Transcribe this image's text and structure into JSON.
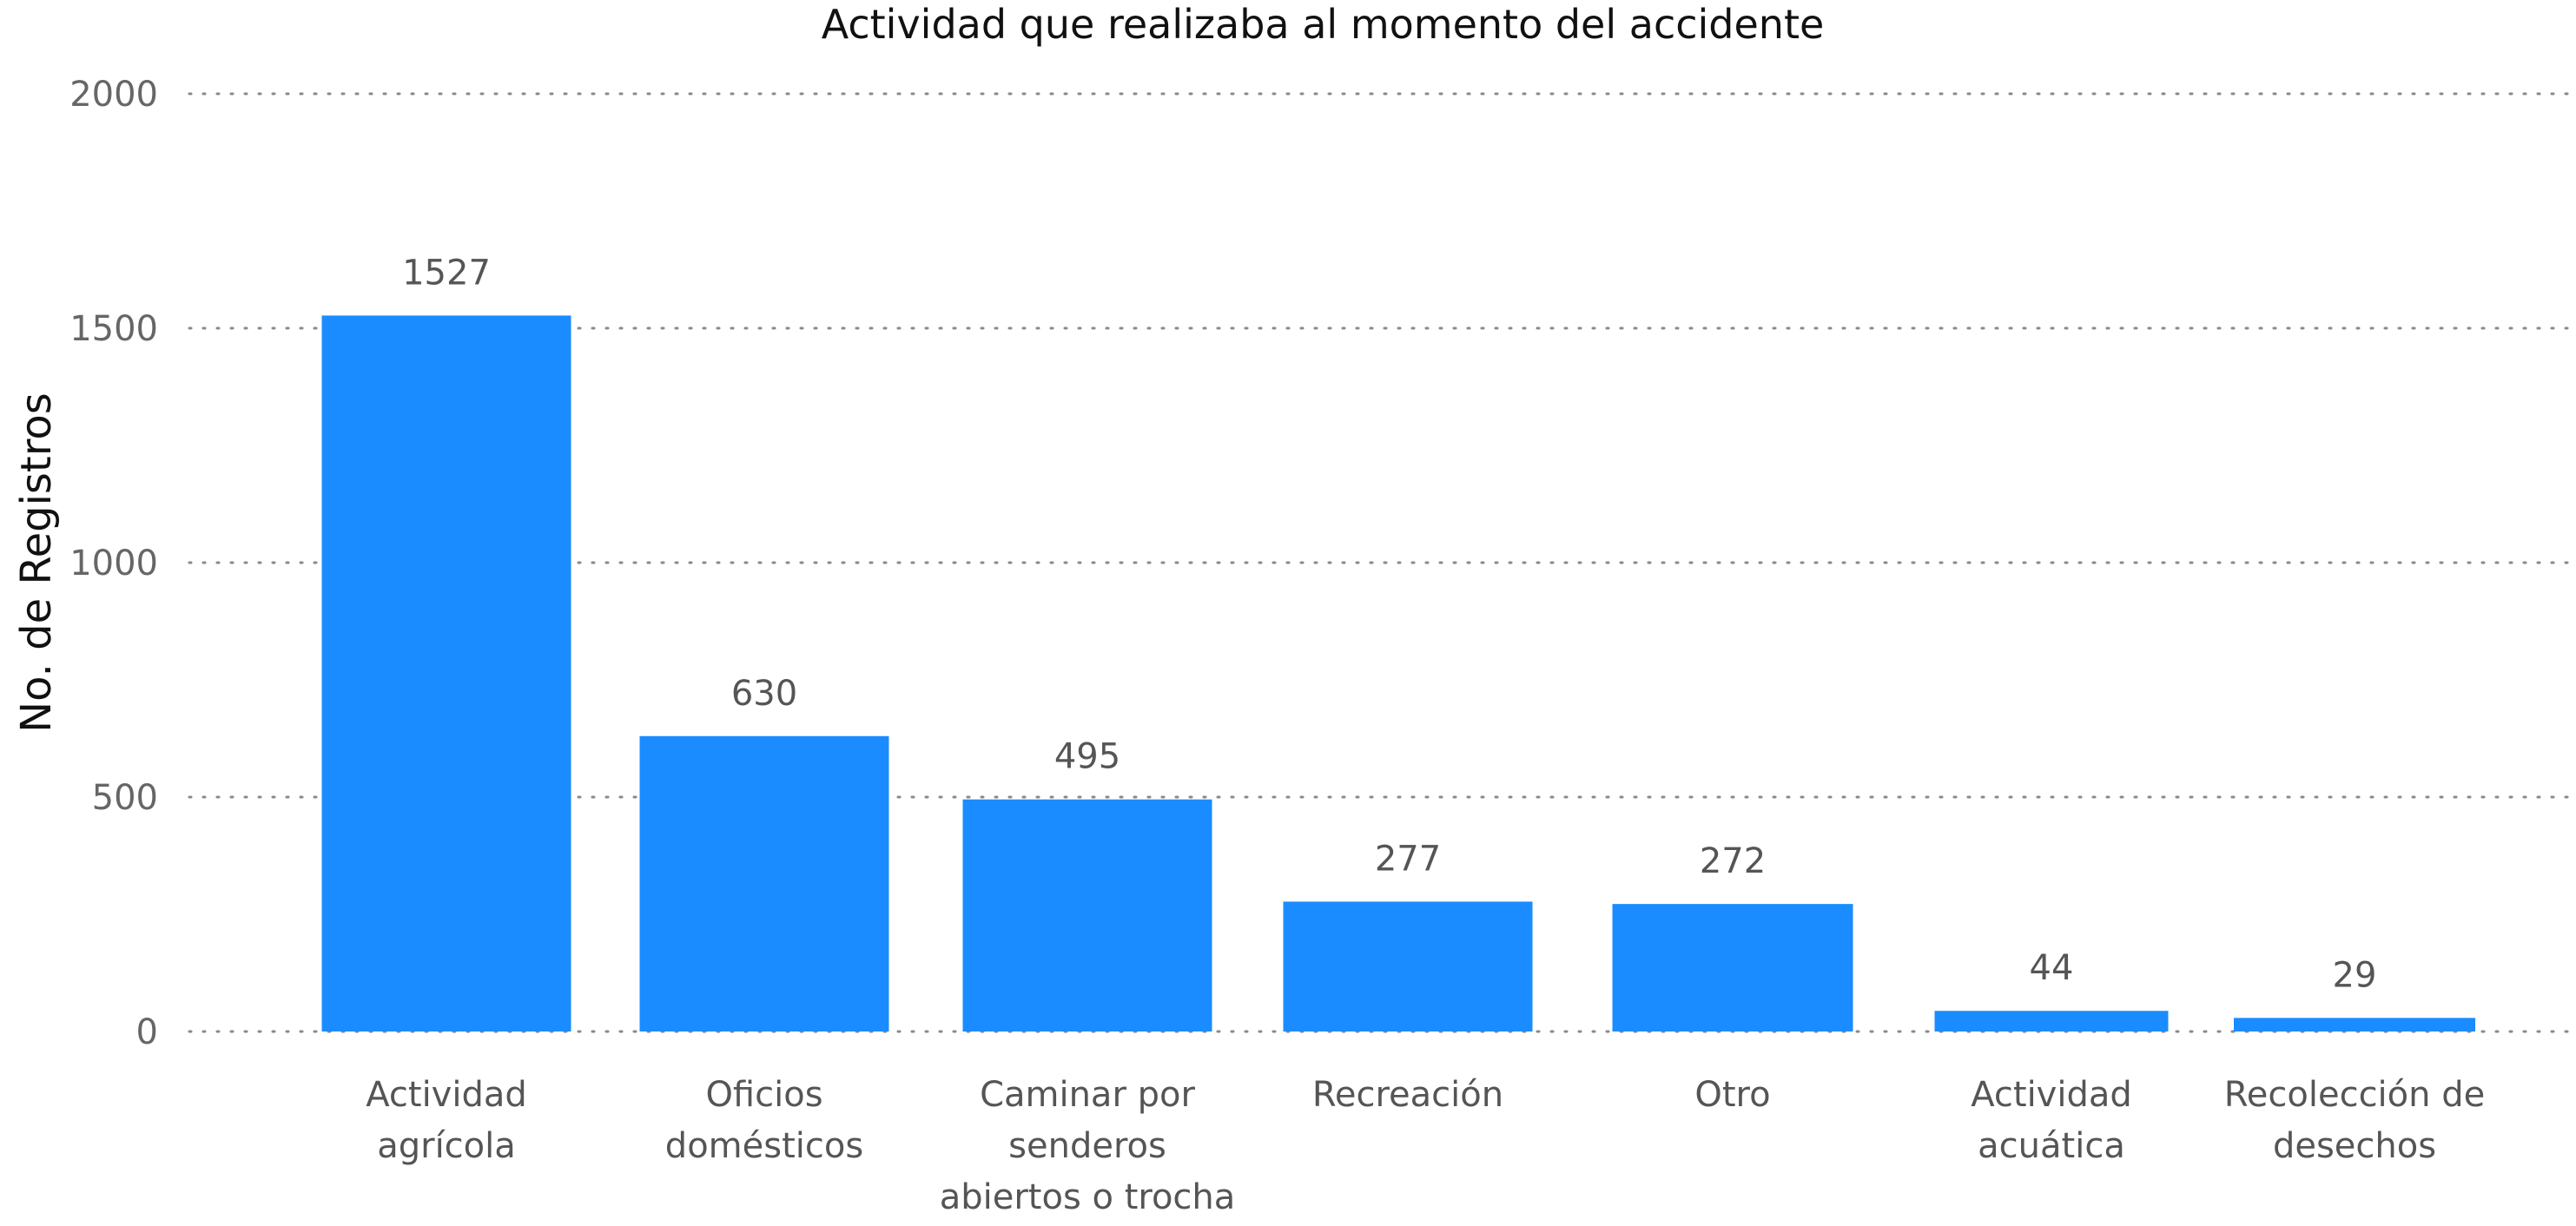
{
  "chart_data": {
    "type": "bar",
    "title": "Actividad que realizaba al momento del accidente",
    "xlabel": "",
    "ylabel": "No. de Registros",
    "categories": [
      [
        "Actividad",
        "agrícola"
      ],
      [
        "Oficios",
        "domésticos"
      ],
      [
        "Caminar por",
        "senderos",
        "abiertos o trocha"
      ],
      [
        "Recreación"
      ],
      [
        "Otro"
      ],
      [
        "Actividad",
        "acuática"
      ],
      [
        "Recolección de",
        "desechos"
      ]
    ],
    "values": [
      1527,
      630,
      495,
      277,
      272,
      44,
      29
    ],
    "ylim": [
      0,
      2000
    ],
    "yticks": [
      0,
      500,
      1000,
      1500,
      2000
    ],
    "grid": true,
    "legend": "none",
    "bar_color": "#1a8cff"
  }
}
